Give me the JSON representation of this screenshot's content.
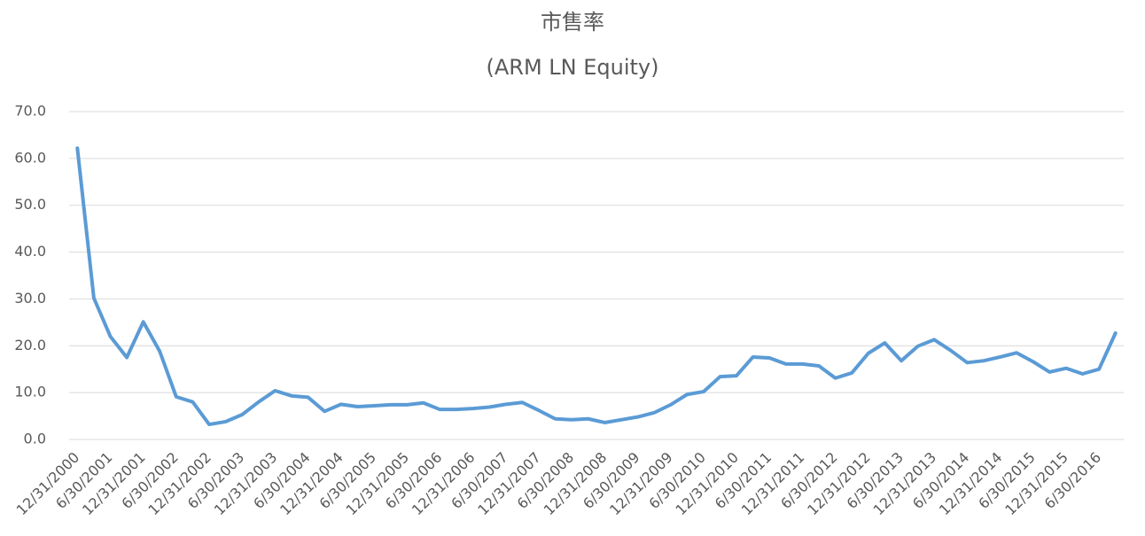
{
  "chart_data": {
    "type": "line",
    "title": "市售率",
    "subtitle": "(ARM LN Equity)",
    "categories": [
      "12/31/2000",
      null,
      "6/30/2001",
      null,
      "12/31/2001",
      null,
      "6/30/2002",
      null,
      "12/31/2002",
      null,
      "6/30/2003",
      null,
      "12/31/2003",
      null,
      "6/30/2004",
      null,
      "12/31/2004",
      null,
      "6/30/2005",
      null,
      "12/31/2005",
      null,
      "6/30/2006",
      null,
      "12/31/2006",
      null,
      "6/30/2007",
      null,
      "12/31/2007",
      null,
      "6/30/2008",
      null,
      "12/31/2008",
      null,
      "6/30/2009",
      null,
      "12/31/2009",
      null,
      "6/30/2010",
      null,
      "12/31/2010",
      null,
      "6/30/2011",
      null,
      "12/31/2011",
      null,
      "6/30/2012",
      null,
      "12/31/2012",
      null,
      "6/30/2013",
      null,
      "12/31/2013",
      null,
      "6/30/2014",
      null,
      "12/31/2014",
      null,
      "6/30/2015",
      null,
      "12/31/2015",
      null,
      "6/30/2016",
      null
    ],
    "values": [
      62.2,
      30.2,
      22.0,
      17.5,
      25.1,
      18.8,
      9.1,
      8.0,
      3.2,
      3.8,
      5.3,
      8.0,
      10.4,
      9.3,
      9.0,
      6.0,
      7.5,
      7.0,
      7.2,
      7.4,
      7.4,
      7.8,
      6.4,
      6.4,
      6.6,
      6.9,
      7.5,
      7.9,
      6.2,
      4.4,
      4.2,
      4.4,
      3.6,
      4.2,
      4.8,
      5.7,
      7.4,
      9.6,
      10.2,
      13.4,
      13.6,
      17.6,
      17.4,
      16.1,
      16.1,
      15.7,
      13.1,
      14.2,
      18.4,
      20.6,
      16.8,
      19.9,
      21.3,
      19.0,
      16.4,
      16.8,
      17.6,
      18.5,
      16.6,
      14.4,
      15.2,
      14.0,
      15.0,
      22.7
    ],
    "color": "#5b9bd5",
    "ylim": [
      0,
      70
    ],
    "yticks": [
      {
        "value": 0,
        "label": "0.0"
      },
      {
        "value": 10,
        "label": "10.0"
      },
      {
        "value": 20,
        "label": "20.0"
      },
      {
        "value": 30,
        "label": "30.0"
      },
      {
        "value": 40,
        "label": "40.0"
      },
      {
        "value": 50,
        "label": "50.0"
      },
      {
        "value": 60,
        "label": "60.0"
      },
      {
        "value": 70,
        "label": "70.0"
      }
    ],
    "grid": true
  }
}
